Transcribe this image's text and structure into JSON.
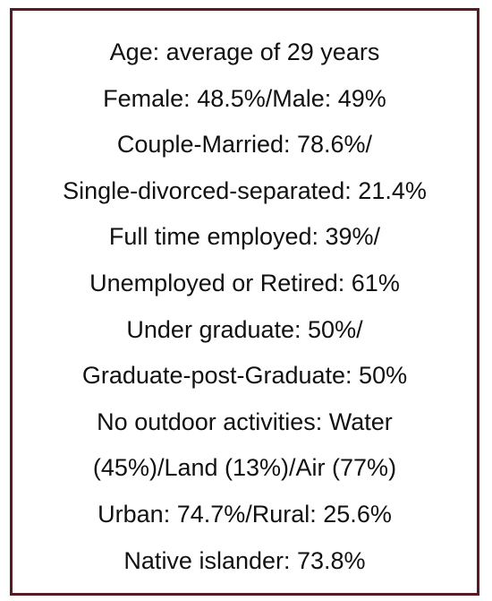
{
  "box": {
    "border_color": "#5a1a24",
    "lines": [
      "Age: average of 29 years",
      "Female: 48.5%/Male: 49%",
      "Couple-Married: 78.6%/",
      "Single-divorced-separated: 21.4%",
      "Full time employed: 39%/",
      "Unemployed or Retired: 61%",
      "Under graduate: 50%/",
      "Graduate-post-Graduate: 50%",
      "No outdoor activities: Water",
      "(45%)/Land (13%)/Air (77%)",
      "Urban: 74.7%/Rural: 25.6%",
      "Native islander: 73.8%"
    ]
  }
}
